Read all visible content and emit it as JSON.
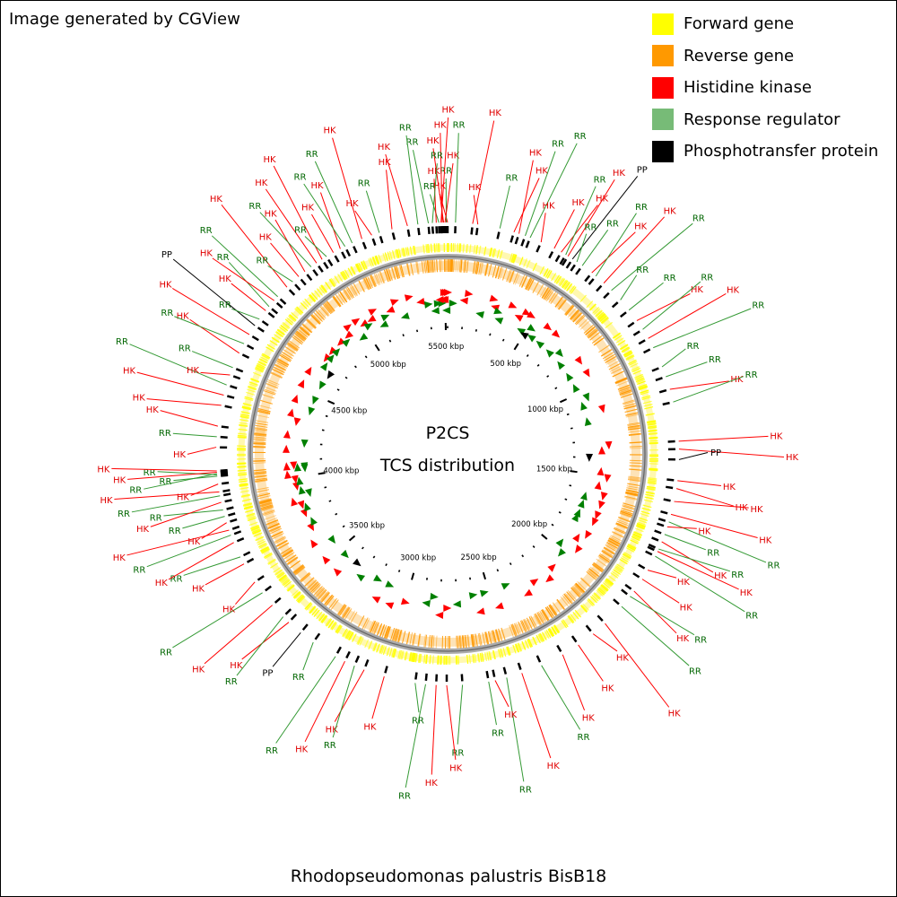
{
  "credit": "Image generated by CGView",
  "organism": "Rhodopseudomonas palustris BisB18",
  "center_title": [
    "P2CS",
    "TCS distribution"
  ],
  "colors": {
    "forward": "#ffff00",
    "reverse": "#ff9900",
    "hk": "#ff0000",
    "rr": "#77bb77",
    "pp": "#000000",
    "hk_text": "#e00000",
    "rr_text": "#006600",
    "backbone": "#888888"
  },
  "legend": [
    {
      "label": "Forward gene",
      "color": "#ffff00"
    },
    {
      "label": "Reverse gene",
      "color": "#ff9900"
    },
    {
      "label": "Histidine kinase",
      "color": "#ff0000"
    },
    {
      "label": "Response regulator",
      "color": "#77bb77"
    },
    {
      "label": "Phosphotransfer protein",
      "color": "#000000"
    }
  ],
  "genome": {
    "length_kbp": 5513,
    "scale_unit": "kbp",
    "ticks_kbp": [
      500,
      1000,
      1500,
      2000,
      2500,
      3000,
      3500,
      4000,
      4500,
      5000,
      5500
    ]
  },
  "features": [
    {
      "type": "HK",
      "kbp": 5513
    },
    {
      "type": "RR",
      "kbp": 5508
    },
    {
      "type": "HK",
      "kbp": 5503
    },
    {
      "type": "HK",
      "kbp": 5498
    },
    {
      "type": "HK",
      "kbp": 5493
    },
    {
      "type": "HK",
      "kbp": 5488
    },
    {
      "type": "RR",
      "kbp": 5480
    },
    {
      "type": "HK",
      "kbp": 5470
    },
    {
      "type": "RR",
      "kbp": 5455
    },
    {
      "type": "RR",
      "kbp": 5440
    },
    {
      "type": "RR",
      "kbp": 30
    },
    {
      "type": "HK",
      "kbp": 95
    },
    {
      "type": "HK",
      "kbp": 115
    },
    {
      "type": "RR",
      "kbp": 200
    },
    {
      "type": "HK",
      "kbp": 255
    },
    {
      "type": "HK",
      "kbp": 275
    },
    {
      "type": "RR",
      "kbp": 300
    },
    {
      "type": "RR",
      "kbp": 320
    },
    {
      "type": "HK",
      "kbp": 365
    },
    {
      "type": "HK",
      "kbp": 420
    },
    {
      "type": "HK",
      "kbp": 450
    },
    {
      "type": "RR",
      "kbp": 470
    },
    {
      "type": "HK",
      "kbp": 480
    },
    {
      "type": "PP",
      "kbp": 500
    },
    {
      "type": "RR",
      "kbp": 520
    },
    {
      "type": "RR",
      "kbp": 545
    },
    {
      "type": "HK",
      "kbp": 590
    },
    {
      "type": "RR",
      "kbp": 610
    },
    {
      "type": "HK",
      "kbp": 650
    },
    {
      "type": "RR",
      "kbp": 690
    },
    {
      "type": "RR",
      "kbp": 740
    },
    {
      "type": "RR",
      "kbp": 790
    },
    {
      "type": "HK",
      "kbp": 840
    },
    {
      "type": "RR",
      "kbp": 880
    },
    {
      "type": "HK",
      "kbp": 920
    },
    {
      "type": "RR",
      "kbp": 960
    },
    {
      "type": "RR",
      "kbp": 1040
    },
    {
      "type": "RR",
      "kbp": 1080
    },
    {
      "type": "HK",
      "kbp": 1130
    },
    {
      "type": "RR",
      "kbp": 1180
    },
    {
      "type": "HK",
      "kbp": 1330
    },
    {
      "type": "HK",
      "kbp": 1360
    },
    {
      "type": "PP",
      "kbp": 1400
    },
    {
      "type": "HK",
      "kbp": 1480
    },
    {
      "type": "HK",
      "kbp": 1510
    },
    {
      "type": "HK",
      "kbp": 1560
    },
    {
      "type": "HK",
      "kbp": 1610
    },
    {
      "type": "RR",
      "kbp": 1640
    },
    {
      "type": "HK",
      "kbp": 1660
    },
    {
      "type": "RR",
      "kbp": 1690
    },
    {
      "type": "HK",
      "kbp": 1720
    },
    {
      "type": "RR",
      "kbp": 1750
    },
    {
      "type": "HK",
      "kbp": 1760
    },
    {
      "type": "RR",
      "kbp": 1780
    },
    {
      "type": "HK",
      "kbp": 1840
    },
    {
      "type": "HK",
      "kbp": 1880
    },
    {
      "type": "HK",
      "kbp": 1935
    },
    {
      "type": "RR",
      "kbp": 1960
    },
    {
      "type": "RR",
      "kbp": 2010
    },
    {
      "type": "HK",
      "kbp": 2100
    },
    {
      "type": "HK",
      "kbp": 2160
    },
    {
      "type": "HK",
      "kbp": 2230
    },
    {
      "type": "HK",
      "kbp": 2300
    },
    {
      "type": "RR",
      "kbp": 2390
    },
    {
      "type": "HK",
      "kbp": 2470
    },
    {
      "type": "RR",
      "kbp": 2530
    },
    {
      "type": "HK",
      "kbp": 2575
    },
    {
      "type": "RR",
      "kbp": 2600
    },
    {
      "type": "RR",
      "kbp": 2700
    },
    {
      "type": "HK",
      "kbp": 2760
    },
    {
      "type": "HK",
      "kbp": 2800
    },
    {
      "type": "RR",
      "kbp": 2840
    },
    {
      "type": "RR",
      "kbp": 2880
    },
    {
      "type": "HK",
      "kbp": 3000
    },
    {
      "type": "HK",
      "kbp": 3080
    },
    {
      "type": "RR",
      "kbp": 3120
    },
    {
      "type": "HK",
      "kbp": 3160
    },
    {
      "type": "RR",
      "kbp": 3200
    },
    {
      "type": "RR",
      "kbp": 3300
    },
    {
      "type": "PP",
      "kbp": 3360
    },
    {
      "type": "HK",
      "kbp": 3420
    },
    {
      "type": "RR",
      "kbp": 3450
    },
    {
      "type": "HK",
      "kbp": 3510
    },
    {
      "type": "RR",
      "kbp": 3570
    },
    {
      "type": "HK",
      "kbp": 3620
    },
    {
      "type": "HK",
      "kbp": 3700
    },
    {
      "type": "RR",
      "kbp": 3730
    },
    {
      "type": "HK",
      "kbp": 3790
    },
    {
      "type": "RR",
      "kbp": 3820
    },
    {
      "type": "HK",
      "kbp": 3840
    },
    {
      "type": "HK",
      "kbp": 3870
    },
    {
      "type": "RR",
      "kbp": 3895
    },
    {
      "type": "RR",
      "kbp": 3920
    },
    {
      "type": "HK",
      "kbp": 3950
    },
    {
      "type": "RR",
      "kbp": 3975
    },
    {
      "type": "HK",
      "kbp": 3990
    },
    {
      "type": "HK",
      "kbp": 4020
    },
    {
      "type": "RR",
      "kbp": 4050
    },
    {
      "type": "RR",
      "kbp": 4055
    },
    {
      "type": "RR",
      "kbp": 4060
    },
    {
      "type": "HK",
      "kbp": 4065
    },
    {
      "type": "HK",
      "kbp": 4070
    },
    {
      "type": "HK",
      "kbp": 4160
    },
    {
      "type": "RR",
      "kbp": 4200
    },
    {
      "type": "HK",
      "kbp": 4240
    },
    {
      "type": "HK",
      "kbp": 4320
    },
    {
      "type": "HK",
      "kbp": 4360
    },
    {
      "type": "RR",
      "kbp": 4400
    },
    {
      "type": "HK",
      "kbp": 4440
    },
    {
      "type": "RR",
      "kbp": 4470
    },
    {
      "type": "HK",
      "kbp": 4530
    },
    {
      "type": "RR",
      "kbp": 4570
    },
    {
      "type": "HK",
      "kbp": 4610
    },
    {
      "type": "PP",
      "kbp": 4650
    },
    {
      "type": "RR",
      "kbp": 4680
    },
    {
      "type": "HK",
      "kbp": 4720
    },
    {
      "type": "RR",
      "kbp": 4740
    },
    {
      "type": "HK",
      "kbp": 4770
    },
    {
      "type": "RR",
      "kbp": 4790
    },
    {
      "type": "HK",
      "kbp": 4840
    },
    {
      "type": "RR",
      "kbp": 4870
    },
    {
      "type": "HK",
      "kbp": 4900
    },
    {
      "type": "HK",
      "kbp": 4930
    },
    {
      "type": "RR",
      "kbp": 4960
    },
    {
      "type": "HK",
      "kbp": 4985
    },
    {
      "type": "HK",
      "kbp": 5010
    },
    {
      "type": "RR",
      "kbp": 5030
    },
    {
      "type": "HK",
      "kbp": 5060
    },
    {
      "type": "HK",
      "kbp": 5090
    },
    {
      "type": "RR",
      "kbp": 5110
    },
    {
      "type": "RR",
      "kbp": 5140
    },
    {
      "type": "HK",
      "kbp": 5180
    },
    {
      "type": "HK",
      "kbp": 5220
    },
    {
      "type": "RR",
      "kbp": 5250
    },
    {
      "type": "HK",
      "kbp": 5300
    },
    {
      "type": "HK",
      "kbp": 5360
    },
    {
      "type": "RR",
      "kbp": 5400
    }
  ]
}
